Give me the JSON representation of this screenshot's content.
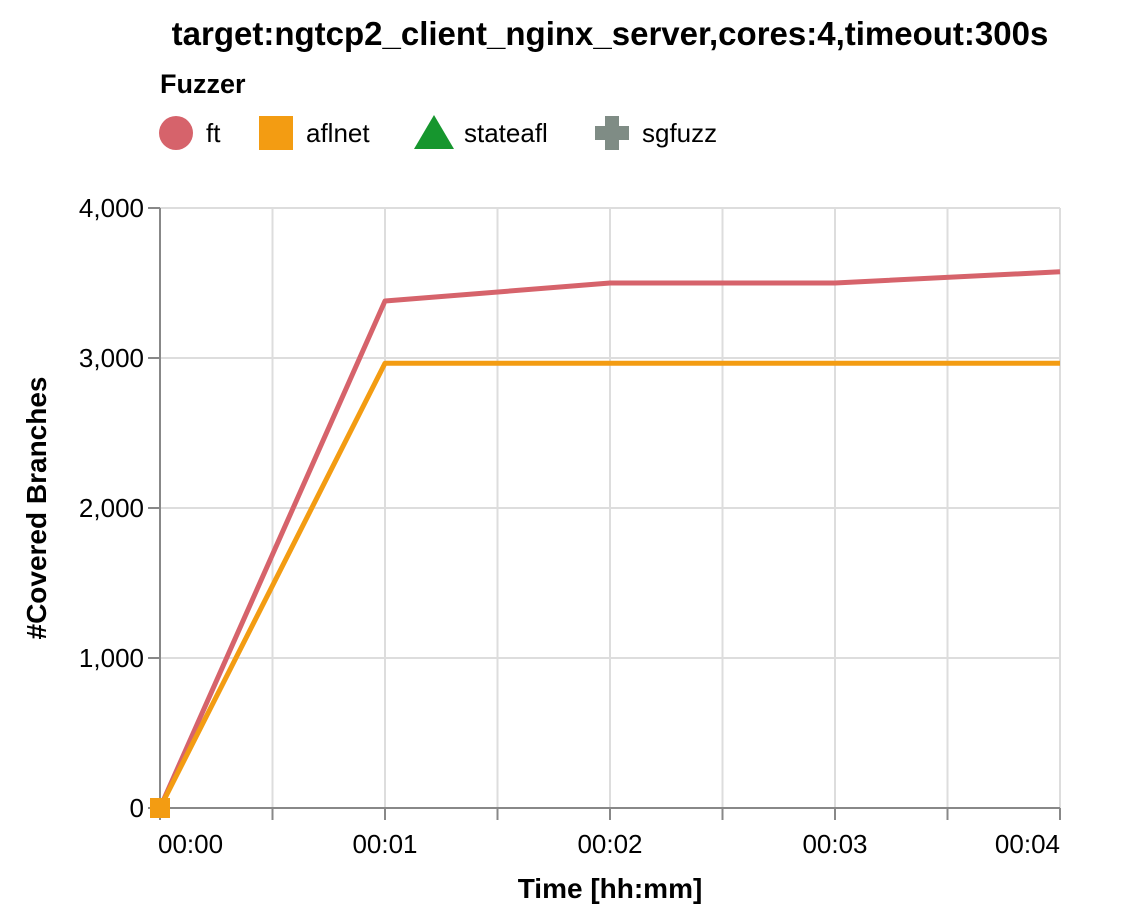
{
  "chart_data": {
    "type": "line",
    "title": "target:ngtcp2_client_nginx_server,cores:4,timeout:300s",
    "xlabel": "Time [hh:mm]",
    "ylabel": "#Covered Branches",
    "x_unit": "minutes",
    "xlim": [
      0,
      4
    ],
    "ylim": [
      0,
      4000
    ],
    "x_ticks": [
      0,
      1,
      2,
      3,
      4
    ],
    "x_tick_labels": [
      "00:00",
      "00:01",
      "00:02",
      "00:03",
      "00:04"
    ],
    "x_minor_ticks": [
      0.5,
      1.5,
      2.5,
      3.5
    ],
    "y_ticks": [
      0,
      1000,
      2000,
      3000,
      4000
    ],
    "y_tick_labels": [
      "0",
      "1,000",
      "2,000",
      "3,000",
      "4,000"
    ],
    "grid": true,
    "legend": {
      "title": "Fuzzer",
      "placement": "top-left",
      "entries": [
        {
          "name": "ft",
          "color": "#d6636b",
          "shape": "circle"
        },
        {
          "name": "aflnet",
          "color": "#f39c12",
          "shape": "square"
        },
        {
          "name": "stateafl",
          "color": "#16962e",
          "shape": "triangle"
        },
        {
          "name": "sgfuzz",
          "color": "#7f8c85",
          "shape": "cross"
        }
      ]
    },
    "series": [
      {
        "name": "ft",
        "color": "#d6636b",
        "x": [
          0,
          1,
          2,
          3,
          4
        ],
        "values": [
          0,
          3380,
          3500,
          3500,
          3575
        ]
      },
      {
        "name": "aflnet",
        "color": "#f39c12",
        "x": [
          0,
          1,
          2,
          3,
          4
        ],
        "values": [
          0,
          2965,
          2965,
          2965,
          2965
        ]
      }
    ],
    "start_marker": {
      "series": "aflnet",
      "x": 0,
      "y": 0,
      "shape": "square",
      "color": "#f39c12"
    }
  }
}
